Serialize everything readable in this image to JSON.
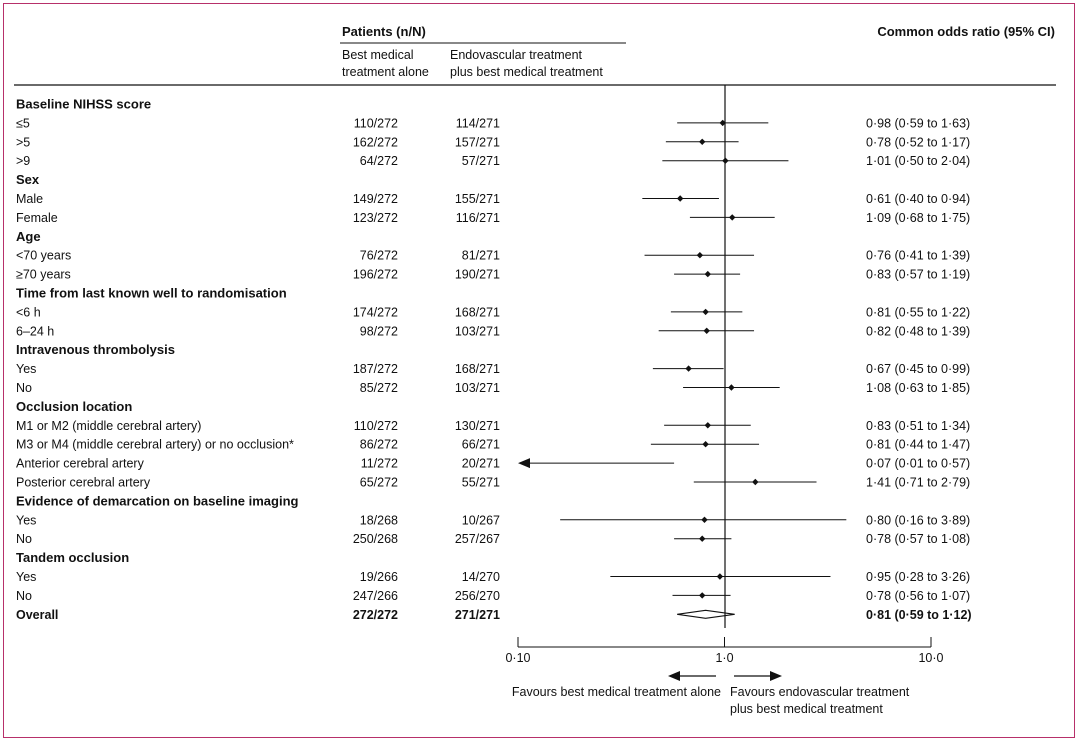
{
  "header": {
    "patients_title": "Patients (n/N)",
    "col_bmt_line1": "Best medical",
    "col_bmt_line2": "treatment alone",
    "col_evt_line1": "Endovascular treatment",
    "col_evt_line2": "plus best medical treatment",
    "or_title": "Common odds ratio (95% CI)"
  },
  "axis": {
    "ticks": [
      {
        "value": 0.1,
        "label": "0·10"
      },
      {
        "value": 1.0,
        "label": "1·0"
      },
      {
        "value": 10.0,
        "label": "10·0"
      }
    ],
    "favours_left": "Favours best medical treatment alone",
    "favours_right_line1": "Favours endovascular treatment",
    "favours_right_line2": "plus best medical treatment"
  },
  "colors": {
    "frame": "#b7306a",
    "ink": "#111111"
  },
  "chart_data": {
    "type": "forest",
    "scale": "log",
    "xlim": [
      0.1,
      10.0
    ],
    "reference_line": 1.0,
    "rows": [
      {
        "kind": "header",
        "label": "Baseline NIHSS score"
      },
      {
        "kind": "data",
        "label": "≤5",
        "bmt": "110/272",
        "evt": "114/271",
        "or": 0.98,
        "lo": 0.59,
        "hi": 1.63,
        "ci_text": "0·98 (0·59 to 1·63)"
      },
      {
        "kind": "data",
        "label": ">5",
        "bmt": "162/272",
        "evt": "157/271",
        "or": 0.78,
        "lo": 0.52,
        "hi": 1.17,
        "ci_text": "0·78 (0·52 to 1·17)"
      },
      {
        "kind": "data",
        "label": ">9",
        "bmt": "64/272",
        "evt": "57/271",
        "or": 1.01,
        "lo": 0.5,
        "hi": 2.04,
        "ci_text": "1·01 (0·50 to 2·04)"
      },
      {
        "kind": "header",
        "label": "Sex"
      },
      {
        "kind": "data",
        "label": "Male",
        "bmt": "149/272",
        "evt": "155/271",
        "or": 0.61,
        "lo": 0.4,
        "hi": 0.94,
        "ci_text": "0·61 (0·40 to 0·94)"
      },
      {
        "kind": "data",
        "label": "Female",
        "bmt": "123/272",
        "evt": "116/271",
        "or": 1.09,
        "lo": 0.68,
        "hi": 1.75,
        "ci_text": "1·09 (0·68 to 1·75)"
      },
      {
        "kind": "header",
        "label": "Age"
      },
      {
        "kind": "data",
        "label": "<70 years",
        "bmt": "76/272",
        "evt": "81/271",
        "or": 0.76,
        "lo": 0.41,
        "hi": 1.39,
        "ci_text": "0·76 (0·41 to 1·39)"
      },
      {
        "kind": "data",
        "label": "≥70 years",
        "bmt": "196/272",
        "evt": "190/271",
        "or": 0.83,
        "lo": 0.57,
        "hi": 1.19,
        "ci_text": "0·83 (0·57 to 1·19)"
      },
      {
        "kind": "header",
        "label": "Time from last known well to randomisation"
      },
      {
        "kind": "data",
        "label": "<6 h",
        "bmt": "174/272",
        "evt": "168/271",
        "or": 0.81,
        "lo": 0.55,
        "hi": 1.22,
        "ci_text": "0·81 (0·55 to 1·22)"
      },
      {
        "kind": "data",
        "label": "6–24 h",
        "bmt": "98/272",
        "evt": "103/271",
        "or": 0.82,
        "lo": 0.48,
        "hi": 1.39,
        "ci_text": "0·82 (0·48 to 1·39)"
      },
      {
        "kind": "header",
        "label": "Intravenous thrombolysis"
      },
      {
        "kind": "data",
        "label": "Yes",
        "bmt": "187/272",
        "evt": "168/271",
        "or": 0.67,
        "lo": 0.45,
        "hi": 0.99,
        "ci_text": "0·67 (0·45 to 0·99)"
      },
      {
        "kind": "data",
        "label": "No",
        "bmt": "85/272",
        "evt": "103/271",
        "or": 1.08,
        "lo": 0.63,
        "hi": 1.85,
        "ci_text": "1·08 (0·63 to 1·85)"
      },
      {
        "kind": "header",
        "label": "Occlusion location"
      },
      {
        "kind": "data",
        "label": "M1 or M2 (middle cerebral artery)",
        "bmt": "110/272",
        "evt": "130/271",
        "or": 0.83,
        "lo": 0.51,
        "hi": 1.34,
        "ci_text": "0·83 (0·51 to 1·34)"
      },
      {
        "kind": "data",
        "label": "M3 or M4 (middle cerebral artery) or no occlusion*",
        "bmt": "86/272",
        "evt": "66/271",
        "or": 0.81,
        "lo": 0.44,
        "hi": 1.47,
        "ci_text": "0·81 (0·44 to 1·47)"
      },
      {
        "kind": "data",
        "label": "Anterior cerebral artery",
        "bmt": "11/272",
        "evt": "20/271",
        "or": 0.07,
        "lo": 0.01,
        "hi": 0.57,
        "ci_text": "0·07 (0·01 to 0·57)",
        "arrow_left": true
      },
      {
        "kind": "data",
        "label": "Posterior cerebral artery",
        "bmt": "65/272",
        "evt": "55/271",
        "or": 1.41,
        "lo": 0.71,
        "hi": 2.79,
        "ci_text": "1·41 (0·71 to 2·79)"
      },
      {
        "kind": "header",
        "label": "Evidence of demarcation on baseline imaging"
      },
      {
        "kind": "data",
        "label": "Yes",
        "bmt": "18/268",
        "evt": "10/267",
        "or": 0.8,
        "lo": 0.16,
        "hi": 3.89,
        "ci_text": "0·80 (0·16 to 3·89)"
      },
      {
        "kind": "data",
        "label": "No",
        "bmt": "250/268",
        "evt": "257/267",
        "or": 0.78,
        "lo": 0.57,
        "hi": 1.08,
        "ci_text": "0·78 (0·57 to 1·08)"
      },
      {
        "kind": "header",
        "label": "Tandem occlusion"
      },
      {
        "kind": "data",
        "label": "Yes",
        "bmt": "19/266",
        "evt": "14/270",
        "or": 0.95,
        "lo": 0.28,
        "hi": 3.26,
        "ci_text": "0·95 (0·28 to 3·26)"
      },
      {
        "kind": "data",
        "label": "No",
        "bmt": "247/266",
        "evt": "256/270",
        "or": 0.78,
        "lo": 0.56,
        "hi": 1.07,
        "ci_text": "0·78 (0·56 to 1·07)"
      },
      {
        "kind": "overall",
        "label": "Overall",
        "bmt": "272/272",
        "evt": "271/271",
        "or": 0.81,
        "lo": 0.59,
        "hi": 1.12,
        "ci_text": "0·81 (0·59 to 1·12)"
      }
    ]
  }
}
